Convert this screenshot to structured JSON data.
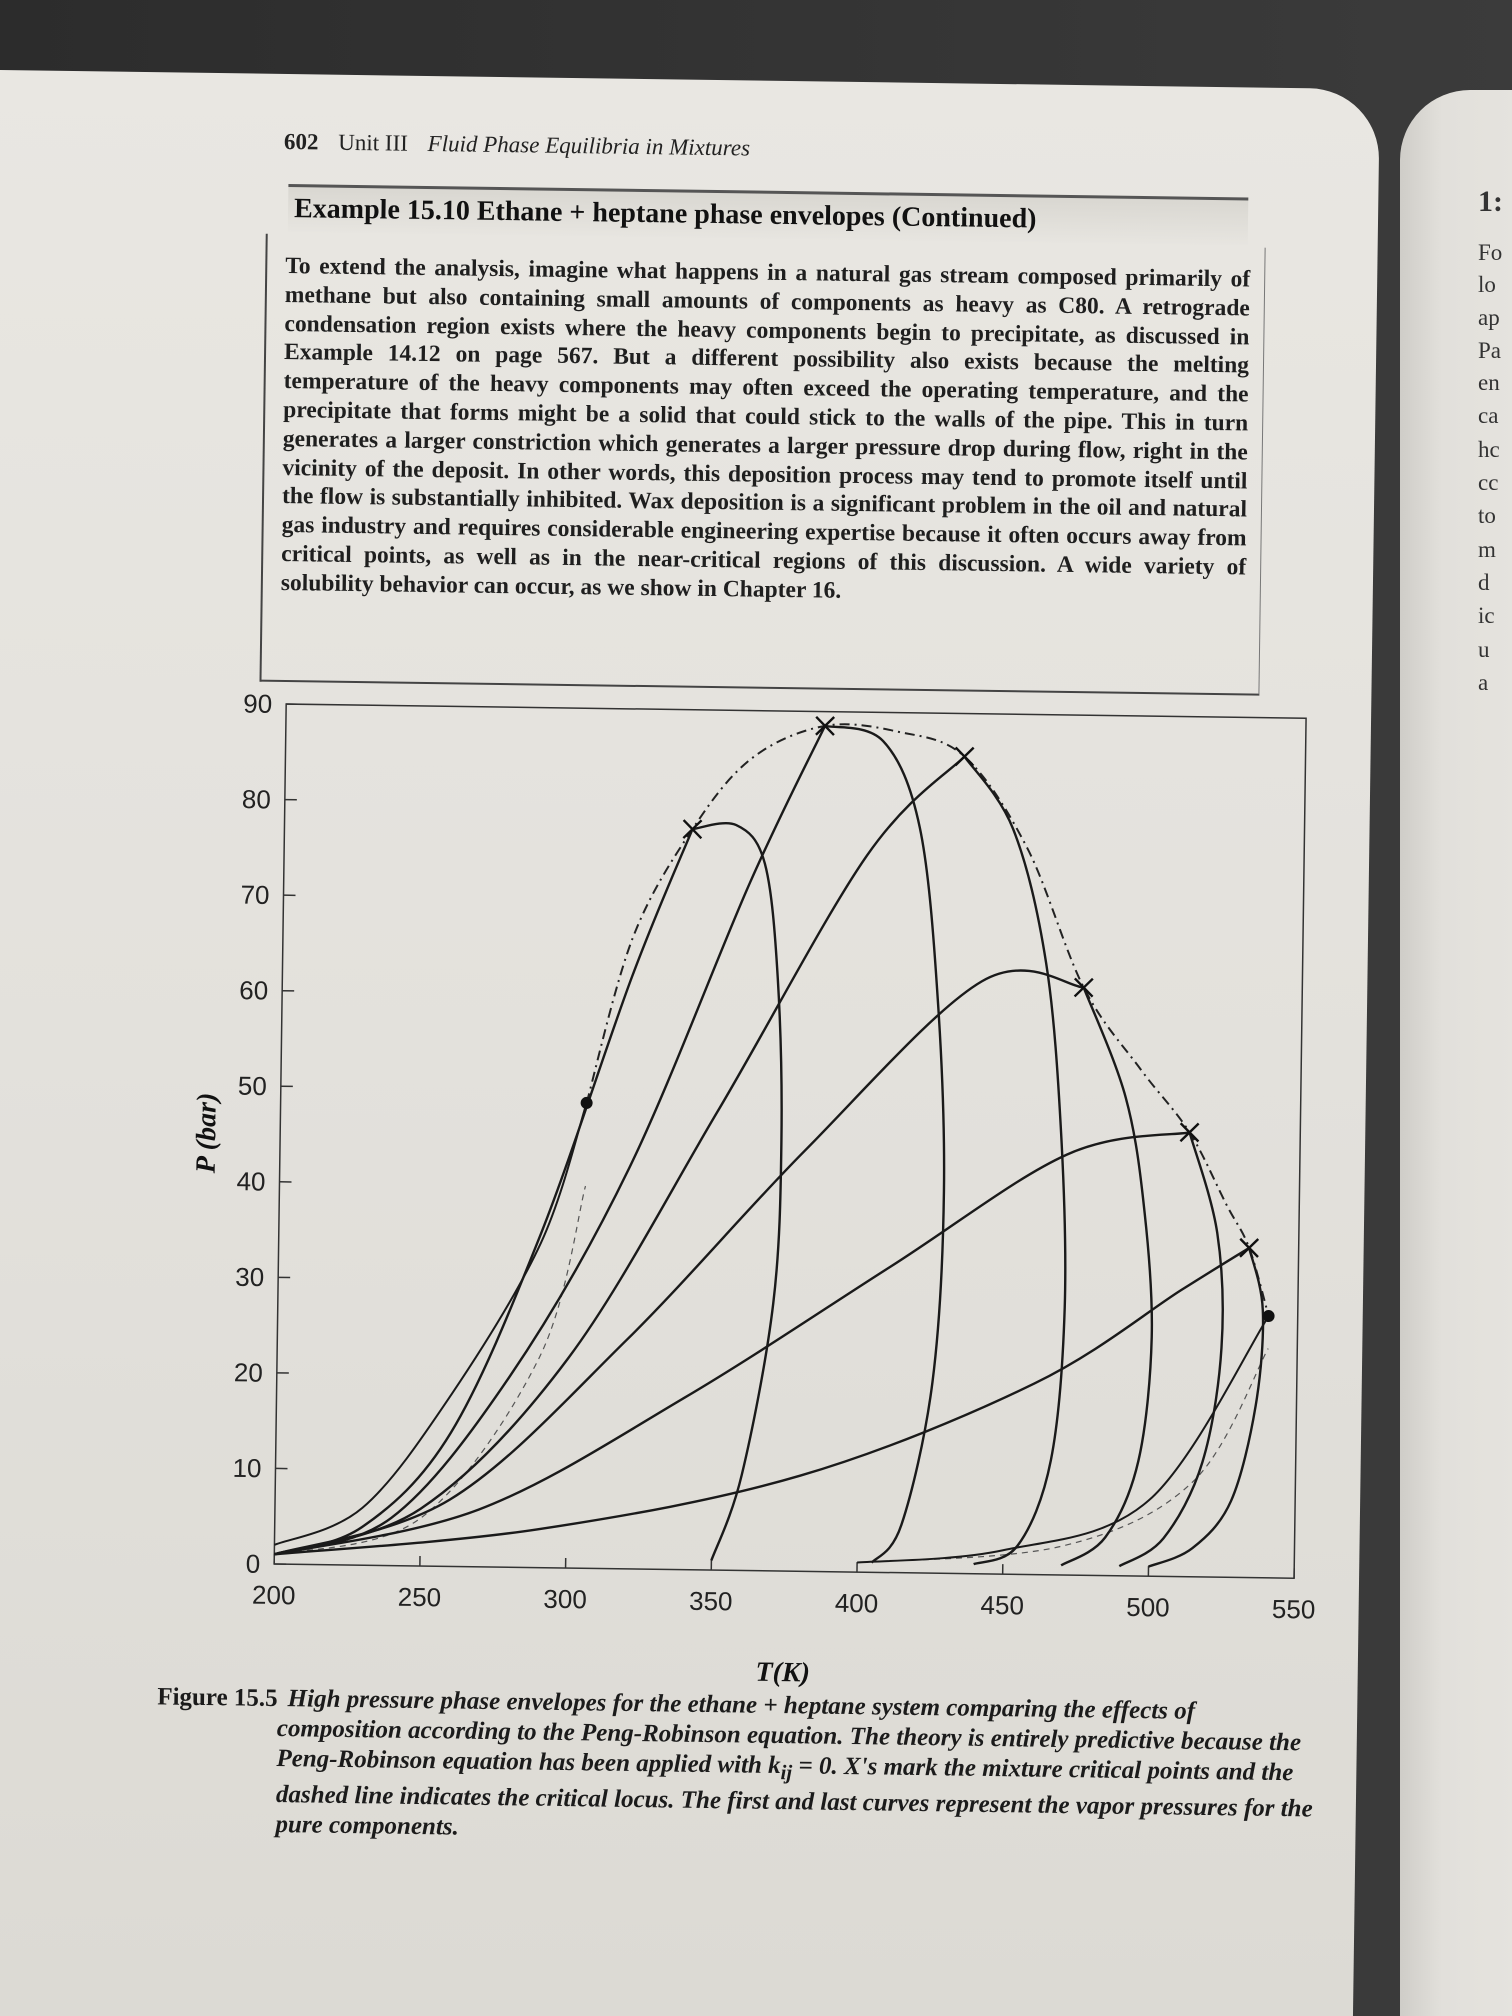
{
  "header": {
    "page_number": "602",
    "unit": "Unit III",
    "section": "Fluid Phase Equilibria in Mixtures"
  },
  "example": {
    "title": "Example 15.10  Ethane + heptane phase envelopes (Continued)",
    "body": "To extend the analysis, imagine what happens in a natural gas stream composed primarily of methane but also containing small amounts of components as heavy as C80. A retrograde condensation region exists where the heavy components begin to precipitate, as discussed in Example 14.12 on page 567. But a different possibility also exists because the melting temperature of the heavy components may often exceed the operating temperature, and the precipitate that forms might be a solid that could stick to the walls of the pipe. This in turn generates a larger constriction which generates a larger pressure drop during flow, right in the vicinity of the deposit. In other words, this deposition process may tend to promote itself until the flow is substantially inhibited. Wax deposition is a significant problem in the oil and natural gas industry and requires considerable engineering expertise because it often occurs away from critical points, as well as in the near-critical regions of this discussion. A wide variety of solubility behavior can occur, as we show in Chapter 16."
  },
  "next_page_fragments": [
    "1:",
    "Fo",
    "lo",
    "ap",
    "Pa",
    "en",
    "ca",
    "hc",
    "cc",
    "to",
    "m",
    "d",
    "ic",
    "u",
    "a"
  ],
  "figure": {
    "label": "Figure 15.5",
    "caption_line1": "High pressure phase envelopes for the ethane + heptane system comparing the effects of",
    "caption_rest": "composition according to the Peng-Robinson equation. The theory is entirely predictive because the Peng-Robinson equation has been applied with k",
    "caption_sub": "ij",
    "caption_end": " = 0. X's mark the mixture critical points and the dashed line indicates the critical locus. The first and last curves represent the vapor pressures for the pure components."
  },
  "chart_data": {
    "type": "line",
    "xlabel": "T(K)",
    "ylabel": "P (bar)",
    "xlim": [
      200,
      550
    ],
    "ylim": [
      0,
      90
    ],
    "xticks": [
      200,
      250,
      300,
      350,
      400,
      450,
      500,
      550
    ],
    "yticks": [
      0,
      10,
      20,
      30,
      40,
      50,
      60,
      70,
      80,
      90
    ],
    "grid": false,
    "pure_component_vapor_pressure": [
      {
        "x": [
          200,
          230,
          260,
          290,
          305
        ],
        "y": [
          2,
          6,
          18,
          34,
          48.7
        ],
        "endpoint": [
          305,
          48.7
        ]
      },
      {
        "x": [
          400,
          450,
          500,
          540
        ],
        "y": [
          1,
          2.5,
          8,
          27.4
        ],
        "endpoint": [
          540,
          27.4
        ]
      }
    ],
    "critical_points": [
      [
        340,
        77.5
      ],
      [
        385,
        88.5
      ],
      [
        433,
        85.5
      ],
      [
        475,
        61.5
      ],
      [
        512,
        46.5
      ],
      [
        533,
        34.5
      ]
    ],
    "critical_locus_dashdot": {
      "x": [
        305,
        320,
        340,
        360,
        385,
        410,
        433,
        455,
        475,
        495,
        512,
        525,
        533,
        540
      ],
      "y": [
        48.7,
        66,
        77.5,
        85,
        88.5,
        88,
        85.5,
        76,
        61.5,
        53,
        46.5,
        39,
        34.5,
        27.4
      ]
    },
    "envelopes": [
      {
        "bubble": {
          "x": [
            200,
            230,
            260,
            290,
            320,
            340
          ],
          "y": [
            1,
            4,
            14,
            35,
            62,
            77.5
          ]
        },
        "dew": {
          "x": [
            340,
            355,
            365,
            370,
            372,
            370,
            360,
            350
          ],
          "y": [
            77.5,
            78,
            74,
            62,
            45,
            28,
            10,
            1
          ]
        }
      },
      {
        "bubble": {
          "x": [
            200,
            240,
            280,
            320,
            360,
            385
          ],
          "y": [
            1,
            5,
            20,
            42,
            72,
            88.5
          ]
        },
        "dew": {
          "x": [
            385,
            405,
            418,
            425,
            428,
            425,
            415,
            405
          ],
          "y": [
            88.5,
            87,
            78,
            60,
            40,
            20,
            5,
            1
          ]
        }
      },
      {
        "bubble": {
          "x": [
            200,
            250,
            300,
            350,
            400,
            433
          ],
          "y": [
            1,
            6,
            22,
            48,
            75,
            85.5
          ]
        },
        "dew": {
          "x": [
            433,
            450,
            462,
            468,
            470,
            466,
            455,
            440
          ],
          "y": [
            85.5,
            78,
            64,
            46,
            28,
            12,
            3,
            1
          ]
        }
      },
      {
        "bubble": {
          "x": [
            200,
            260,
            320,
            380,
            440,
            475
          ],
          "y": [
            1,
            7,
            24,
            44,
            62,
            61.5
          ]
        },
        "dew": {
          "x": [
            475,
            490,
            497,
            500,
            496,
            485,
            470
          ],
          "y": [
            61.5,
            50,
            38,
            25,
            12,
            4,
            1
          ]
        }
      },
      {
        "bubble": {
          "x": [
            200,
            270,
            340,
            410,
            470,
            512
          ],
          "y": [
            1,
            6,
            18,
            32,
            44,
            46.5
          ]
        },
        "dew": {
          "x": [
            512,
            522,
            524,
            518,
            505,
            490
          ],
          "y": [
            46.5,
            36,
            24,
            12,
            4,
            1
          ]
        }
      },
      {
        "bubble": {
          "x": [
            200,
            290,
            380,
            460,
            510,
            533
          ],
          "y": [
            1,
            4,
            10,
            20,
            30,
            34.5
          ]
        },
        "dew": {
          "x": [
            533,
            538,
            536,
            528,
            515,
            500
          ],
          "y": [
            34.5,
            28,
            18,
            8,
            3,
            1
          ]
        }
      }
    ]
  }
}
